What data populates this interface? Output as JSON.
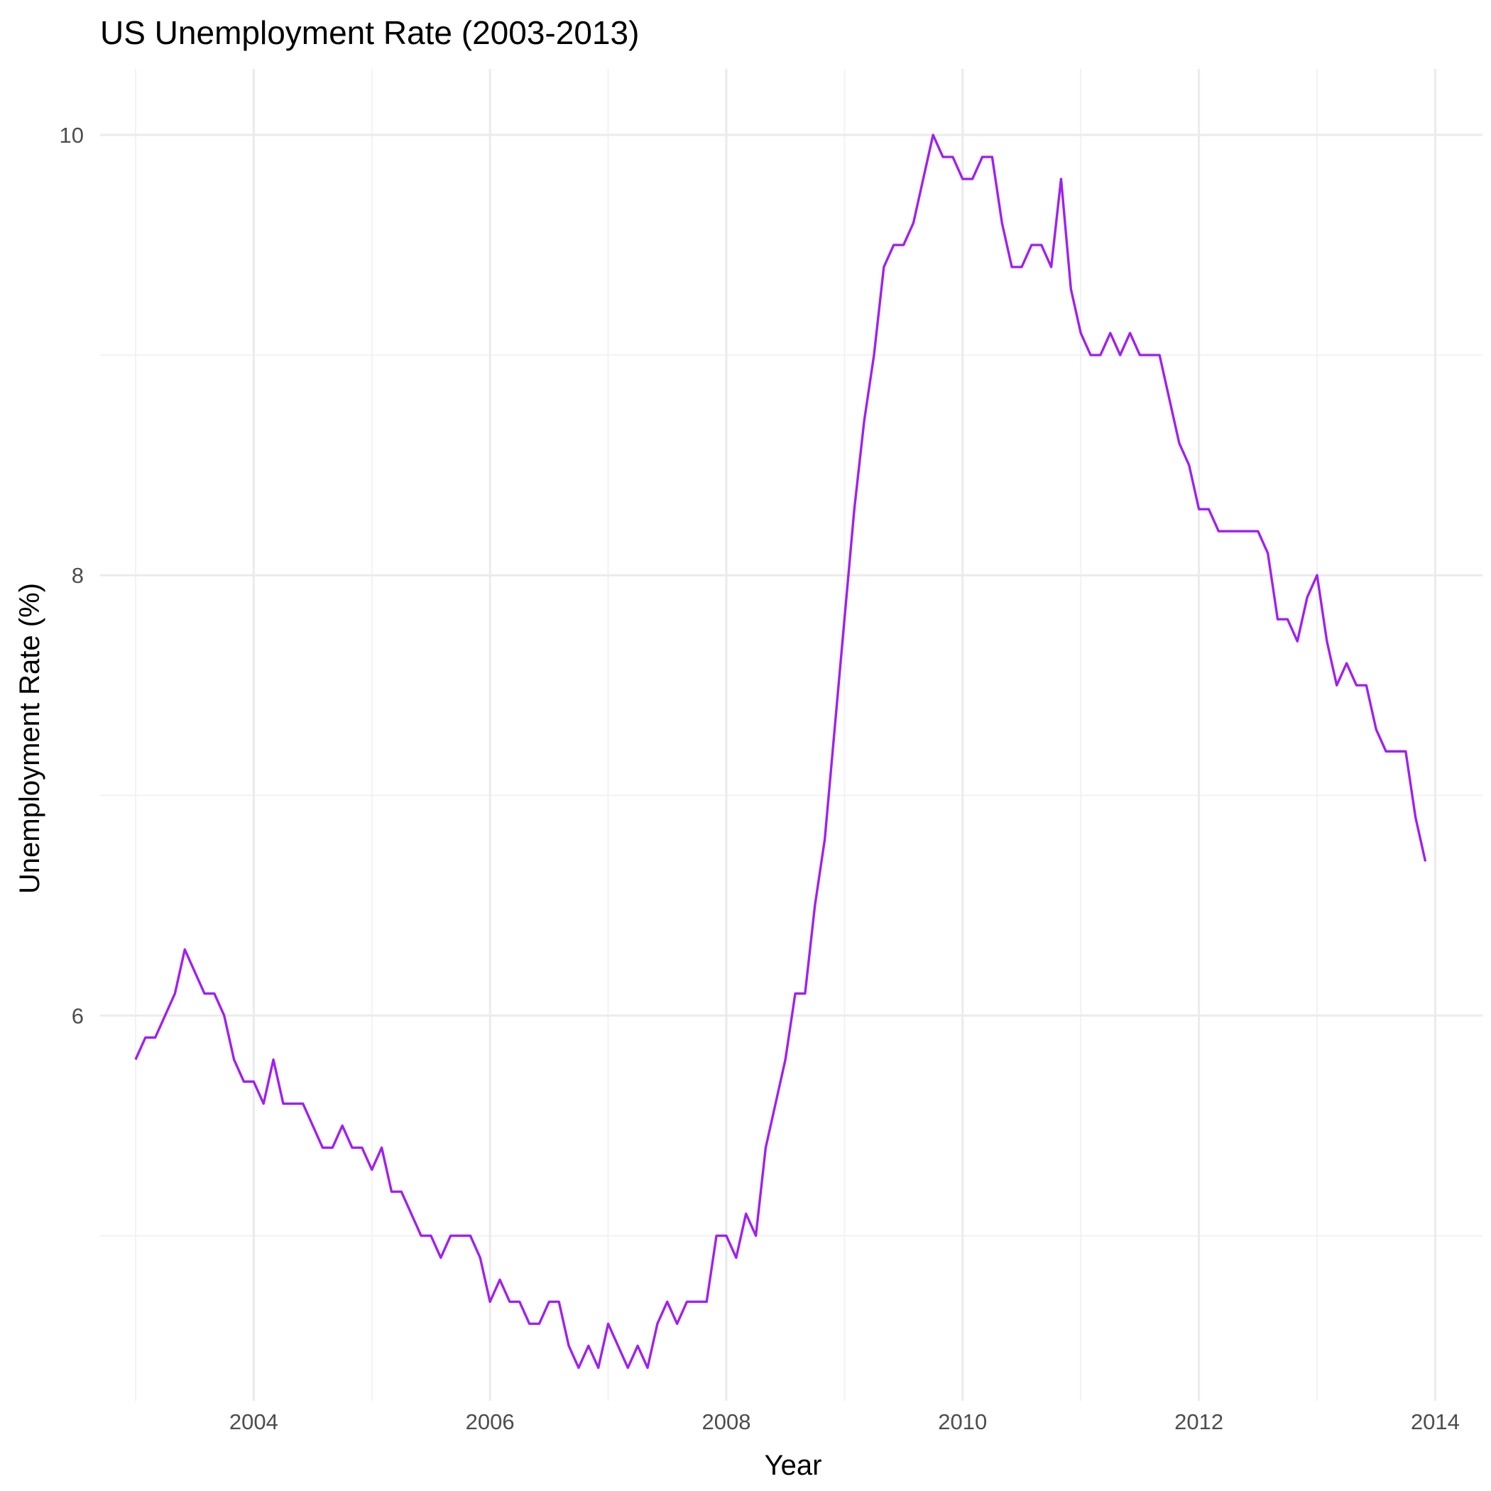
{
  "chart_data": {
    "type": "line",
    "title": "US Unemployment Rate (2003-2013)",
    "xlabel": "Year",
    "ylabel": "Unemployment Rate (%)",
    "xlim": [
      2002.7,
      2014.4
    ],
    "ylim": [
      4.25,
      10.3
    ],
    "x_ticks": [
      2004,
      2006,
      2008,
      2010,
      2012,
      2014
    ],
    "x_tick_labels": [
      "2004",
      "2006",
      "2008",
      "2010",
      "2012",
      "2014"
    ],
    "x_minor_ticks": [
      2003,
      2005,
      2007,
      2009,
      2011,
      2013
    ],
    "y_ticks": [
      6,
      8,
      10
    ],
    "y_tick_labels": [
      "6",
      "8",
      "10"
    ],
    "y_minor_ticks": [
      5,
      7,
      9
    ],
    "grid": true,
    "line_color": "#a020f0",
    "series": [
      {
        "name": "Unemployment Rate",
        "start_year": 2003,
        "step_months": 1,
        "values": [
          5.8,
          5.9,
          5.9,
          6.0,
          6.1,
          6.3,
          6.2,
          6.1,
          6.1,
          6.0,
          5.8,
          5.7,
          5.7,
          5.6,
          5.8,
          5.6,
          5.6,
          5.6,
          5.5,
          5.4,
          5.4,
          5.5,
          5.4,
          5.4,
          5.3,
          5.4,
          5.2,
          5.2,
          5.1,
          5.0,
          5.0,
          4.9,
          5.0,
          5.0,
          5.0,
          4.9,
          4.7,
          4.8,
          4.7,
          4.7,
          4.6,
          4.6,
          4.7,
          4.7,
          4.5,
          4.4,
          4.5,
          4.4,
          4.6,
          4.5,
          4.4,
          4.5,
          4.4,
          4.6,
          4.7,
          4.6,
          4.7,
          4.7,
          4.7,
          5.0,
          5.0,
          4.9,
          5.1,
          5.0,
          5.4,
          5.6,
          5.8,
          6.1,
          6.1,
          6.5,
          6.8,
          7.3,
          7.8,
          8.3,
          8.7,
          9.0,
          9.4,
          9.5,
          9.5,
          9.6,
          9.8,
          10.0,
          9.9,
          9.9,
          9.8,
          9.8,
          9.9,
          9.9,
          9.6,
          9.4,
          9.4,
          9.5,
          9.5,
          9.4,
          9.8,
          9.3,
          9.1,
          9.0,
          9.0,
          9.1,
          9.0,
          9.1,
          9.0,
          9.0,
          9.0,
          8.8,
          8.6,
          8.5,
          8.3,
          8.3,
          8.2,
          8.2,
          8.2,
          8.2,
          8.2,
          8.1,
          7.8,
          7.8,
          7.7,
          7.9,
          8.0,
          7.7,
          7.5,
          7.6,
          7.5,
          7.5,
          7.3,
          7.2,
          7.2,
          7.2,
          6.9,
          6.7
        ]
      }
    ]
  }
}
